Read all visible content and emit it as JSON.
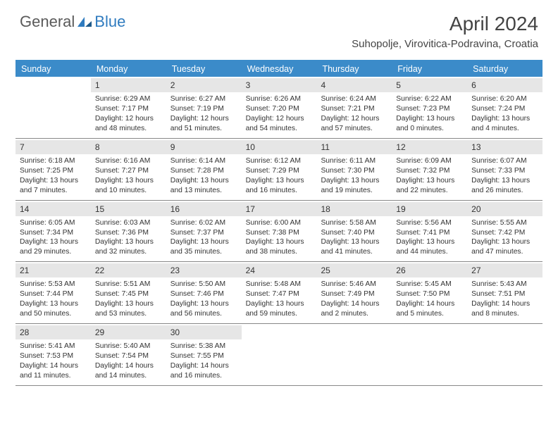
{
  "logo": {
    "general": "General",
    "blue": "Blue"
  },
  "title": "April 2024",
  "location": "Suhopolje, Virovitica-Podravina, Croatia",
  "colors": {
    "header_bg": "#3b8bc9",
    "header_text": "#ffffff",
    "daynum_bg": "#e6e6e6",
    "border": "#888888",
    "body_text": "#333333",
    "logo_gray": "#5a5a5a",
    "logo_blue": "#2f7bbf"
  },
  "weekdays": [
    "Sunday",
    "Monday",
    "Tuesday",
    "Wednesday",
    "Thursday",
    "Friday",
    "Saturday"
  ],
  "weeks": [
    [
      {
        "n": "",
        "empty": true
      },
      {
        "n": "1",
        "sr": "Sunrise: 6:29 AM",
        "ss": "Sunset: 7:17 PM",
        "d1": "Daylight: 12 hours",
        "d2": "and 48 minutes."
      },
      {
        "n": "2",
        "sr": "Sunrise: 6:27 AM",
        "ss": "Sunset: 7:19 PM",
        "d1": "Daylight: 12 hours",
        "d2": "and 51 minutes."
      },
      {
        "n": "3",
        "sr": "Sunrise: 6:26 AM",
        "ss": "Sunset: 7:20 PM",
        "d1": "Daylight: 12 hours",
        "d2": "and 54 minutes."
      },
      {
        "n": "4",
        "sr": "Sunrise: 6:24 AM",
        "ss": "Sunset: 7:21 PM",
        "d1": "Daylight: 12 hours",
        "d2": "and 57 minutes."
      },
      {
        "n": "5",
        "sr": "Sunrise: 6:22 AM",
        "ss": "Sunset: 7:23 PM",
        "d1": "Daylight: 13 hours",
        "d2": "and 0 minutes."
      },
      {
        "n": "6",
        "sr": "Sunrise: 6:20 AM",
        "ss": "Sunset: 7:24 PM",
        "d1": "Daylight: 13 hours",
        "d2": "and 4 minutes."
      }
    ],
    [
      {
        "n": "7",
        "sr": "Sunrise: 6:18 AM",
        "ss": "Sunset: 7:25 PM",
        "d1": "Daylight: 13 hours",
        "d2": "and 7 minutes."
      },
      {
        "n": "8",
        "sr": "Sunrise: 6:16 AM",
        "ss": "Sunset: 7:27 PM",
        "d1": "Daylight: 13 hours",
        "d2": "and 10 minutes."
      },
      {
        "n": "9",
        "sr": "Sunrise: 6:14 AM",
        "ss": "Sunset: 7:28 PM",
        "d1": "Daylight: 13 hours",
        "d2": "and 13 minutes."
      },
      {
        "n": "10",
        "sr": "Sunrise: 6:12 AM",
        "ss": "Sunset: 7:29 PM",
        "d1": "Daylight: 13 hours",
        "d2": "and 16 minutes."
      },
      {
        "n": "11",
        "sr": "Sunrise: 6:11 AM",
        "ss": "Sunset: 7:30 PM",
        "d1": "Daylight: 13 hours",
        "d2": "and 19 minutes."
      },
      {
        "n": "12",
        "sr": "Sunrise: 6:09 AM",
        "ss": "Sunset: 7:32 PM",
        "d1": "Daylight: 13 hours",
        "d2": "and 22 minutes."
      },
      {
        "n": "13",
        "sr": "Sunrise: 6:07 AM",
        "ss": "Sunset: 7:33 PM",
        "d1": "Daylight: 13 hours",
        "d2": "and 26 minutes."
      }
    ],
    [
      {
        "n": "14",
        "sr": "Sunrise: 6:05 AM",
        "ss": "Sunset: 7:34 PM",
        "d1": "Daylight: 13 hours",
        "d2": "and 29 minutes."
      },
      {
        "n": "15",
        "sr": "Sunrise: 6:03 AM",
        "ss": "Sunset: 7:36 PM",
        "d1": "Daylight: 13 hours",
        "d2": "and 32 minutes."
      },
      {
        "n": "16",
        "sr": "Sunrise: 6:02 AM",
        "ss": "Sunset: 7:37 PM",
        "d1": "Daylight: 13 hours",
        "d2": "and 35 minutes."
      },
      {
        "n": "17",
        "sr": "Sunrise: 6:00 AM",
        "ss": "Sunset: 7:38 PM",
        "d1": "Daylight: 13 hours",
        "d2": "and 38 minutes."
      },
      {
        "n": "18",
        "sr": "Sunrise: 5:58 AM",
        "ss": "Sunset: 7:40 PM",
        "d1": "Daylight: 13 hours",
        "d2": "and 41 minutes."
      },
      {
        "n": "19",
        "sr": "Sunrise: 5:56 AM",
        "ss": "Sunset: 7:41 PM",
        "d1": "Daylight: 13 hours",
        "d2": "and 44 minutes."
      },
      {
        "n": "20",
        "sr": "Sunrise: 5:55 AM",
        "ss": "Sunset: 7:42 PM",
        "d1": "Daylight: 13 hours",
        "d2": "and 47 minutes."
      }
    ],
    [
      {
        "n": "21",
        "sr": "Sunrise: 5:53 AM",
        "ss": "Sunset: 7:44 PM",
        "d1": "Daylight: 13 hours",
        "d2": "and 50 minutes."
      },
      {
        "n": "22",
        "sr": "Sunrise: 5:51 AM",
        "ss": "Sunset: 7:45 PM",
        "d1": "Daylight: 13 hours",
        "d2": "and 53 minutes."
      },
      {
        "n": "23",
        "sr": "Sunrise: 5:50 AM",
        "ss": "Sunset: 7:46 PM",
        "d1": "Daylight: 13 hours",
        "d2": "and 56 minutes."
      },
      {
        "n": "24",
        "sr": "Sunrise: 5:48 AM",
        "ss": "Sunset: 7:47 PM",
        "d1": "Daylight: 13 hours",
        "d2": "and 59 minutes."
      },
      {
        "n": "25",
        "sr": "Sunrise: 5:46 AM",
        "ss": "Sunset: 7:49 PM",
        "d1": "Daylight: 14 hours",
        "d2": "and 2 minutes."
      },
      {
        "n": "26",
        "sr": "Sunrise: 5:45 AM",
        "ss": "Sunset: 7:50 PM",
        "d1": "Daylight: 14 hours",
        "d2": "and 5 minutes."
      },
      {
        "n": "27",
        "sr": "Sunrise: 5:43 AM",
        "ss": "Sunset: 7:51 PM",
        "d1": "Daylight: 14 hours",
        "d2": "and 8 minutes."
      }
    ],
    [
      {
        "n": "28",
        "sr": "Sunrise: 5:41 AM",
        "ss": "Sunset: 7:53 PM",
        "d1": "Daylight: 14 hours",
        "d2": "and 11 minutes."
      },
      {
        "n": "29",
        "sr": "Sunrise: 5:40 AM",
        "ss": "Sunset: 7:54 PM",
        "d1": "Daylight: 14 hours",
        "d2": "and 14 minutes."
      },
      {
        "n": "30",
        "sr": "Sunrise: 5:38 AM",
        "ss": "Sunset: 7:55 PM",
        "d1": "Daylight: 14 hours",
        "d2": "and 16 minutes."
      },
      {
        "n": "",
        "empty": true
      },
      {
        "n": "",
        "empty": true
      },
      {
        "n": "",
        "empty": true
      },
      {
        "n": "",
        "empty": true
      }
    ]
  ]
}
